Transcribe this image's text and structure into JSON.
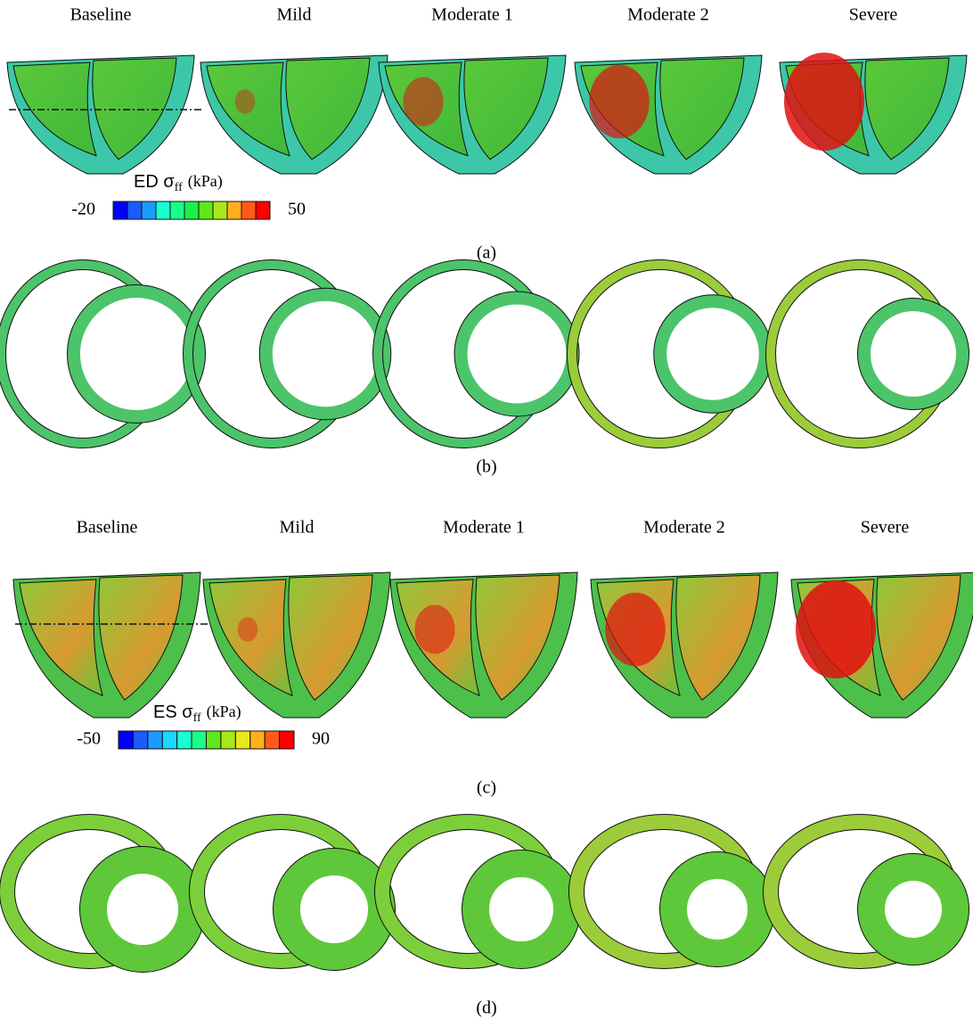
{
  "panels": [
    {
      "label": "(a)",
      "columns": [
        "Baseline",
        "Mild",
        "Moderate 1",
        "Moderate 2",
        "Severe"
      ],
      "colorbar": {
        "title": "ED σ",
        "subscript": "ff",
        "unit": "(kPa)",
        "min": -20,
        "max": 50
      }
    },
    {
      "label": "(b)"
    },
    {
      "label": "(c)",
      "columns": [
        "Baseline",
        "Mild",
        "Moderate 1",
        "Moderate 2",
        "Severe"
      ],
      "colorbar": {
        "title": "ES σ",
        "subscript": "ff",
        "unit": "(kPa)",
        "min": -50,
        "max": 90
      }
    },
    {
      "label": "(d)"
    }
  ]
}
